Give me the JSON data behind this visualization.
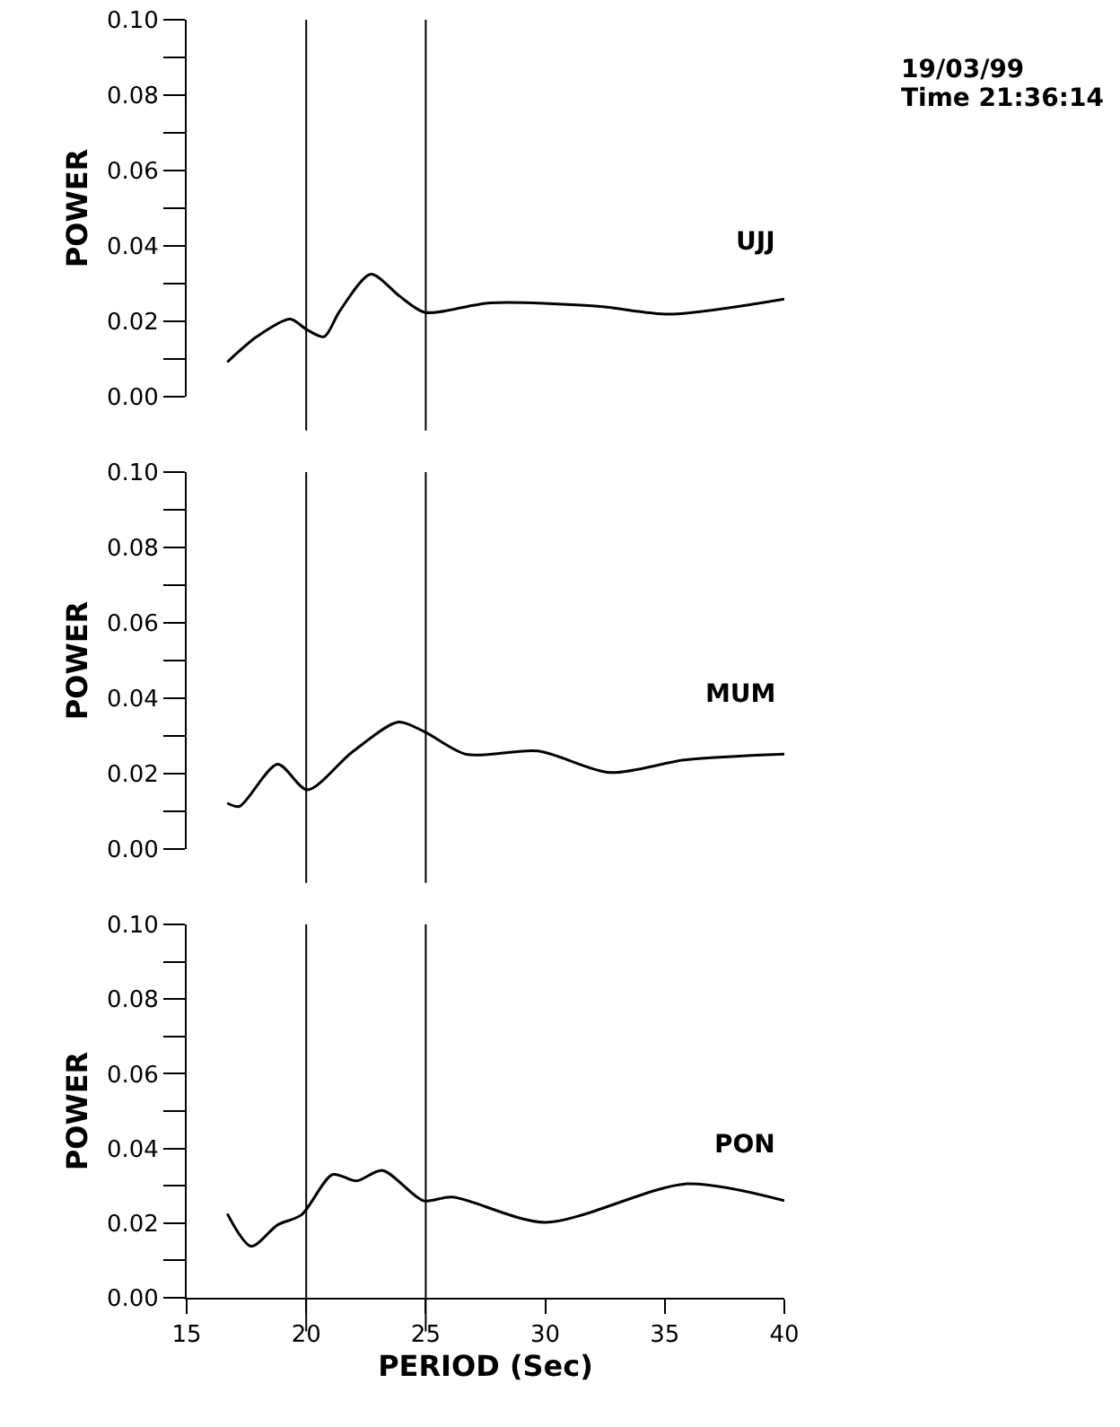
{
  "chart_data": [
    {
      "type": "line",
      "ylabel": "POWER",
      "annotations": [
        "19/03/99",
        "Time 21:36:14"
      ],
      "xlim": [
        15,
        40
      ],
      "ylim": [
        0,
        0.1
      ],
      "yticks": [
        {
          "value": 0,
          "label": "0.00"
        },
        {
          "value": 0.01,
          "label": null
        },
        {
          "value": 0.02,
          "label": "0.02"
        },
        {
          "value": 0.03,
          "label": null
        },
        {
          "value": 0.04,
          "label": "0.04"
        },
        {
          "value": 0.05,
          "label": null
        },
        {
          "value": 0.06,
          "label": "0.06"
        },
        {
          "value": 0.07,
          "label": null
        },
        {
          "value": 0.08,
          "label": "0.08"
        },
        {
          "value": 0.09,
          "label": null
        },
        {
          "value": 0.1,
          "label": "0.10"
        }
      ],
      "tick_labels": "y",
      "grid": false,
      "marker": "none",
      "line_style": "solid",
      "ref_lines": [
        {
          "axis": "x",
          "value": 20,
          "color": "#000000"
        },
        {
          "axis": "x",
          "value": 25,
          "color": "#000000"
        }
      ],
      "series": [
        {
          "name": "UJJ",
          "color": "#000000",
          "x": [
            16.7,
            17.95,
            19.33,
            20.0,
            20.75,
            21.4,
            22.7,
            23.9,
            24.95,
            27.7,
            32.2,
            35.2,
            40
          ],
          "values": [
            0.0092,
            0.016,
            0.0206,
            0.0179,
            0.0159,
            0.0227,
            0.0325,
            0.0267,
            0.0224,
            0.0249,
            0.024,
            0.0219,
            0.0259
          ]
        }
      ]
    },
    {
      "type": "line",
      "ylabel": "POWER",
      "xlim": [
        15,
        40
      ],
      "ylim": [
        0,
        0.1
      ],
      "yticks": [
        {
          "value": 0,
          "label": "0.00"
        },
        {
          "value": 0.01,
          "label": null
        },
        {
          "value": 0.02,
          "label": "0.02"
        },
        {
          "value": 0.03,
          "label": null
        },
        {
          "value": 0.04,
          "label": "0.04"
        },
        {
          "value": 0.05,
          "label": null
        },
        {
          "value": 0.06,
          "label": "0.06"
        },
        {
          "value": 0.07,
          "label": null
        },
        {
          "value": 0.08,
          "label": "0.08"
        },
        {
          "value": 0.09,
          "label": null
        },
        {
          "value": 0.1,
          "label": "0.10"
        }
      ],
      "tick_labels": "y",
      "grid": false,
      "marker": "none",
      "line_style": "solid",
      "ref_lines": [
        {
          "axis": "x",
          "value": 20,
          "color": "#000000"
        },
        {
          "axis": "x",
          "value": 25,
          "color": "#000000"
        }
      ],
      "series": [
        {
          "name": "MUM",
          "color": "#000000",
          "x": [
            16.7,
            17.2,
            18.8,
            20.05,
            21.9,
            23.85,
            24.95,
            26.7,
            29.7,
            32.7,
            35.9,
            40
          ],
          "values": [
            0.0122,
            0.0113,
            0.0225,
            0.0157,
            0.0256,
            0.0337,
            0.0311,
            0.0251,
            0.026,
            0.0203,
            0.0237,
            0.0252
          ]
        }
      ]
    },
    {
      "type": "line",
      "ylabel": "POWER",
      "xlabel": "PERIOD (Sec)",
      "xlim": [
        15,
        40
      ],
      "xticks": [
        15,
        20,
        25,
        30,
        35,
        40
      ],
      "ylim": [
        0,
        0.1
      ],
      "yticks": [
        {
          "value": 0,
          "label": "0.00"
        },
        {
          "value": 0.01,
          "label": null
        },
        {
          "value": 0.02,
          "label": "0.02"
        },
        {
          "value": 0.03,
          "label": null
        },
        {
          "value": 0.04,
          "label": "0.04"
        },
        {
          "value": 0.05,
          "label": null
        },
        {
          "value": 0.06,
          "label": "0.06"
        },
        {
          "value": 0.07,
          "label": null
        },
        {
          "value": 0.08,
          "label": "0.08"
        },
        {
          "value": 0.09,
          "label": null
        },
        {
          "value": 0.1,
          "label": "0.10"
        }
      ],
      "grid": false,
      "marker": "none",
      "line_style": "solid",
      "ref_lines": [
        {
          "axis": "x",
          "value": 20,
          "color": "#000000"
        },
        {
          "axis": "x",
          "value": 25,
          "color": "#000000"
        }
      ],
      "series": [
        {
          "name": "PON",
          "color": "#000000",
          "x": [
            16.7,
            17.7,
            18.8,
            19.8,
            21.1,
            22.1,
            23.2,
            24.9,
            26.1,
            30.0,
            35.9,
            40
          ],
          "values": [
            0.0225,
            0.0138,
            0.0195,
            0.0222,
            0.033,
            0.0313,
            0.0341,
            0.026,
            0.027,
            0.0202,
            0.0305,
            0.026
          ]
        }
      ]
    }
  ]
}
